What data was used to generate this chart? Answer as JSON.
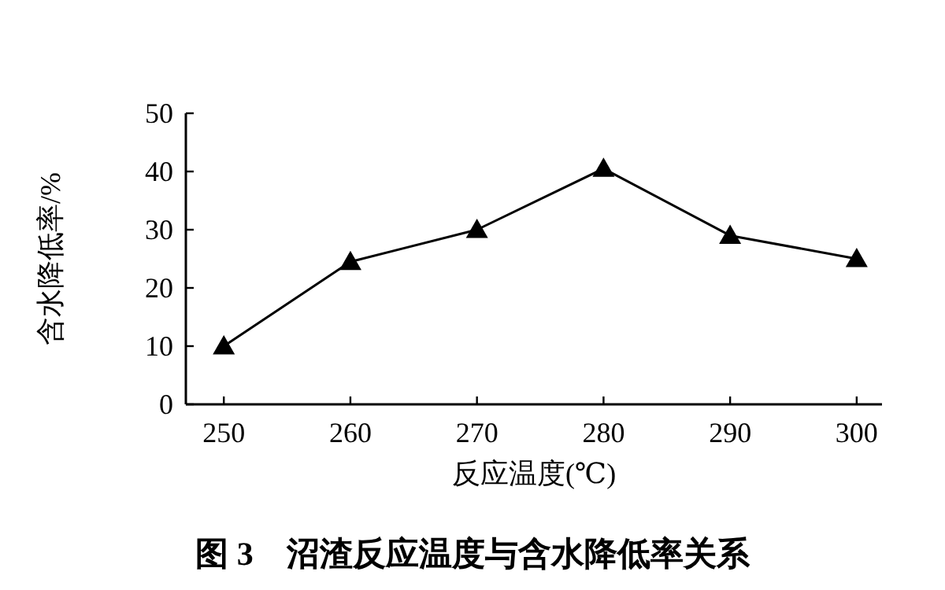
{
  "chart_data": {
    "type": "line",
    "title": "图 3　沼渣反应温度与含水降低率关系",
    "xlabel": "反应温度(℃)",
    "ylabel": "含水降低率/%",
    "x": [
      250,
      260,
      270,
      280,
      290,
      300
    ],
    "series": [
      {
        "color": "#000000",
        "values": [
          10,
          24.5,
          30,
          40.5,
          29,
          25
        ]
      }
    ],
    "xlim": [
      247,
      302
    ],
    "ylim": [
      0,
      50
    ],
    "xticks": [
      250,
      260,
      270,
      280,
      290,
      300
    ],
    "yticks": [
      0,
      10,
      20,
      30,
      40,
      50
    ],
    "marker": "triangle",
    "line_style": "solid"
  }
}
